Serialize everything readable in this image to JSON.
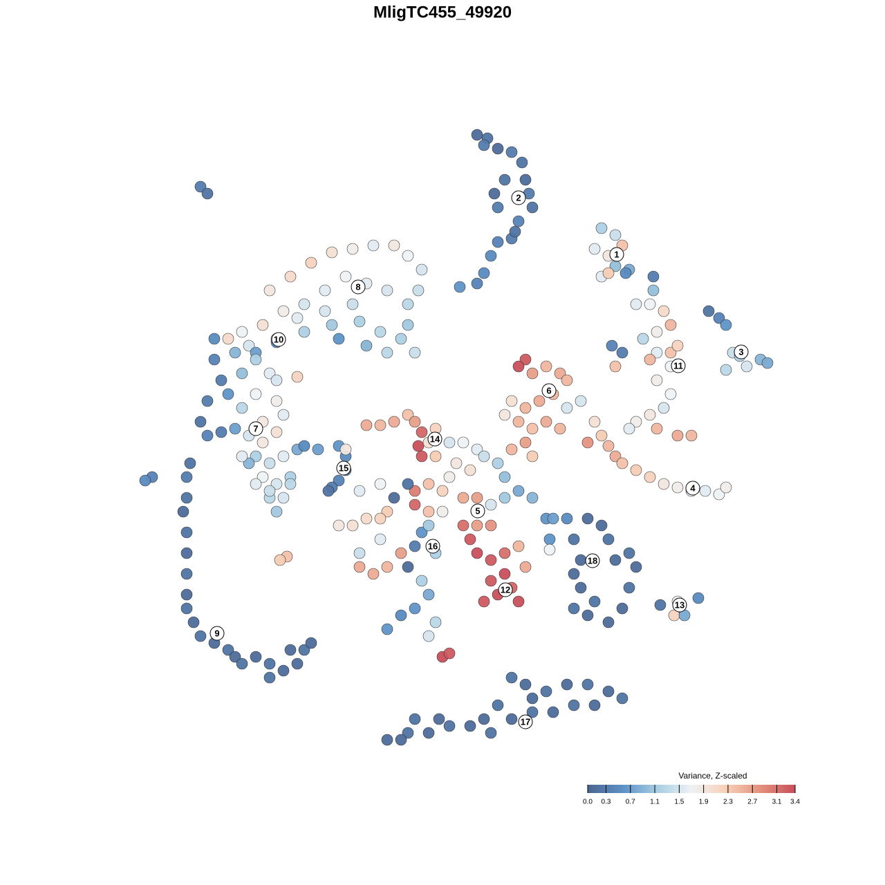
{
  "chart_data": {
    "type": "scatter",
    "title": "MligTC455_49920",
    "xlim": [
      -50,
      50
    ],
    "ylim": [
      -50,
      50
    ],
    "x": [
      5,
      6.5,
      8,
      10,
      11.5,
      12,
      12.5,
      13,
      11,
      10,
      8,
      7,
      6,
      5,
      2.5,
      8,
      9,
      7.5,
      6,
      10.5,
      -35,
      -34,
      -25,
      -22,
      -19,
      -16,
      -13,
      -10,
      -7,
      -5,
      -3,
      -3.5,
      -5,
      -8,
      -11,
      -14,
      -17,
      -20,
      -23,
      -26,
      -29,
      -31,
      -28,
      -24,
      -20,
      -16,
      -12,
      -9,
      -6,
      -4,
      -5,
      -13,
      -17,
      -21,
      -8,
      -11,
      -15,
      -24,
      -27,
      -33,
      -33,
      -32,
      -30,
      -27,
      -25,
      -29,
      -31,
      -34,
      -35,
      -34,
      -32,
      -29,
      -27,
      -26,
      -24,
      -23,
      -28,
      -30,
      -26,
      -24,
      -21,
      -24,
      -27,
      -25,
      -23,
      -26,
      -24,
      -22,
      -28,
      -27,
      -25,
      -23,
      -22,
      -24,
      -25,
      -21,
      -20,
      -29,
      -36.5,
      -37,
      -37,
      -37.5,
      -37,
      -37,
      -37,
      -37,
      -37,
      -36,
      -35,
      -33,
      -31,
      -30,
      -29,
      -27,
      -25,
      -23,
      -25,
      -21,
      -20,
      -19,
      -22,
      -42,
      -43,
      -18,
      -15,
      -14,
      -14,
      -15,
      -16,
      -16.5,
      -14,
      -11,
      -9,
      -7,
      -5,
      -4,
      -3,
      -3.5,
      -3,
      -1,
      -2,
      1,
      3,
      5,
      2,
      4,
      6,
      8,
      9,
      1,
      0,
      -2,
      -4,
      -4,
      -2,
      0,
      3,
      5,
      7,
      9,
      11,
      13,
      -5,
      -7,
      -8,
      -9,
      -11,
      -13,
      -15,
      -12,
      -9,
      -1,
      4,
      5,
      7,
      9,
      10,
      8,
      6,
      7,
      9,
      11,
      12,
      5,
      3,
      7,
      11,
      -3,
      -2,
      -4,
      -1,
      -6,
      -8,
      -10,
      -12,
      -12,
      -9,
      -5,
      -3,
      -2,
      -4,
      -6,
      -8,
      -1,
      -2,
      0,
      1,
      -22.5,
      -23.5,
      12,
      11,
      13,
      15,
      17,
      18,
      16,
      14,
      12,
      10,
      9,
      11,
      13,
      15,
      17,
      18,
      20,
      12,
      10,
      13,
      22,
      23,
      24,
      25,
      26,
      28,
      30,
      32,
      34,
      36,
      38,
      40,
      41,
      21,
      28,
      30,
      32,
      33,
      31,
      29,
      31,
      33,
      34,
      30,
      33,
      31,
      33,
      32,
      30,
      28,
      27,
      31,
      34,
      36,
      24.5,
      26,
      25,
      23,
      25,
      22,
      24,
      26,
      25,
      27,
      23,
      24,
      26.5,
      30.5,
      30.5,
      38.5,
      40,
      41,
      42,
      43,
      46,
      47,
      41,
      44,
      15,
      16,
      18,
      21,
      23,
      24,
      19,
      20,
      19,
      20,
      19,
      21,
      24,
      26,
      27,
      28,
      27,
      25,
      22,
      15.5,
      15.5,
      31.5,
      34,
      37,
      33.5,
      35,
      10,
      12,
      15,
      18,
      21,
      24,
      26,
      22,
      19,
      16,
      13,
      10,
      8,
      6,
      7,
      4,
      1,
      -2,
      -5,
      -8,
      -6,
      -4,
      -0.5,
      13
    ],
    "y": [
      44.5,
      44,
      42.5,
      42,
      40.5,
      38,
      36,
      34,
      32,
      29.5,
      29,
      27,
      24.5,
      23,
      22.5,
      34,
      38,
      36,
      43,
      30.5,
      37,
      36,
      22,
      24,
      26,
      27.5,
      28,
      28.5,
      28.5,
      27,
      25,
      22,
      20,
      22,
      23,
      24,
      22,
      20,
      19,
      17,
      16,
      15,
      14,
      15,
      16,
      17,
      17.5,
      16,
      15,
      13,
      17,
      20,
      19,
      18,
      13,
      14,
      15,
      14.5,
      13,
      15,
      12,
      9,
      13,
      12,
      10,
      10,
      7,
      6,
      3,
      1,
      1.5,
      5,
      7,
      3,
      6,
      4,
      1,
      2,
      0,
      1.5,
      9.5,
      9,
      -2,
      -3,
      -2,
      -5,
      -6,
      -5,
      -3,
      -6,
      -8,
      -8,
      -6,
      -10,
      -7,
      -1,
      -0.5,
      -2,
      -3,
      -5,
      -8,
      -10,
      -13,
      -16,
      -19,
      -22,
      -24,
      -26,
      -28,
      -29,
      -30,
      -31,
      -32,
      -31,
      -32,
      -33,
      -34,
      -32,
      -30,
      -29,
      -30,
      -5,
      -5.5,
      -1,
      -0.5,
      -2,
      -4,
      -5.5,
      -6.5,
      -7,
      -1,
      2.5,
      2.5,
      3,
      4,
      3,
      1.5,
      -0.5,
      -2,
      2,
      0,
      0,
      0,
      -1,
      -3,
      -4,
      -2,
      -3,
      -5,
      -5,
      -7,
      -6,
      -7,
      -9,
      -10,
      -10,
      -8,
      -8,
      -9,
      -8,
      -7,
      -8,
      -6,
      -8,
      -10,
      -11,
      -11,
      -12,
      -12,
      -7,
      -6,
      -2,
      -14,
      -16,
      -17,
      -19,
      -21,
      -22,
      -23,
      -20,
      -16,
      -15,
      -18,
      -12,
      -12,
      -12,
      -23,
      -13,
      -12,
      -15,
      -16,
      -16,
      -18,
      -19,
      -18,
      -16,
      -14,
      -18,
      -20,
      -22,
      -24,
      -25,
      -27,
      -26,
      -28,
      -31,
      -30.5,
      -16.5,
      -17,
      12,
      11,
      10,
      11,
      10,
      9,
      7,
      6,
      5,
      6,
      4,
      3,
      2,
      3,
      2,
      5,
      6,
      0,
      -1,
      -2,
      3,
      1,
      -0.5,
      -2,
      -3,
      -4,
      -5,
      -6,
      -6.5,
      -7,
      -7,
      -7.5,
      -6.5,
      0,
      20,
      20,
      19,
      17,
      16,
      15,
      13,
      13,
      14,
      12,
      11,
      9,
      7,
      5,
      4,
      3,
      2,
      2,
      1,
      1,
      14,
      13,
      11,
      31,
      30,
      28,
      27,
      28.5,
      25.5,
      25,
      24,
      24.5,
      24.5,
      24,
      22,
      19,
      18,
      17,
      13,
      12.5,
      12,
      11.5,
      10.5,
      11,
      -11,
      -11,
      -11,
      -11,
      -12,
      -14,
      -14,
      -17,
      -19,
      -21,
      -24,
      -25,
      -26,
      -24,
      -21,
      -18,
      -16,
      -17,
      -23,
      -14,
      -15.5,
      -23.5,
      -23,
      -22.5,
      -25,
      -25,
      -34,
      -35,
      -36,
      -35,
      -35,
      -36,
      -37,
      -38,
      -38,
      -39,
      -39,
      -40,
      -38,
      -40,
      -42,
      -41,
      -41,
      -42,
      -42,
      -43,
      -43,
      -40,
      -40,
      -37
    ],
    "values": [
      0.1,
      0.2,
      0.1,
      0.3,
      0.2,
      0.1,
      0.3,
      0.2,
      0.4,
      0.3,
      0.4,
      0.5,
      0.5,
      0.4,
      0.6,
      0.3,
      0.2,
      0.1,
      0.3,
      0.2,
      0.3,
      0.2,
      1.9,
      2.1,
      2.2,
      2.0,
      1.8,
      1.6,
      1.9,
      1.7,
      1.5,
      1.4,
      1.3,
      1.5,
      1.6,
      1.7,
      1.6,
      1.5,
      1.8,
      2.0,
      1.7,
      2.1,
      1.5,
      1.3,
      1.2,
      1.1,
      1.2,
      1.3,
      1.2,
      1.4,
      1.1,
      1.4,
      1.5,
      1.6,
      1.3,
      0.9,
      0.6,
      0.5,
      0.7,
      0.5,
      0.4,
      0.3,
      0.9,
      1.2,
      1.6,
      1.0,
      0.6,
      0.3,
      0.2,
      0.4,
      0.3,
      1.3,
      1.7,
      1.9,
      1.8,
      1.6,
      1.5,
      0.7,
      1.9,
      2.0,
      2.2,
      1.5,
      1.2,
      1.4,
      1.6,
      1.7,
      1.5,
      1.2,
      0.9,
      1.6,
      1.3,
      1.5,
      1.3,
      1.1,
      1.4,
      0.8,
      0.5,
      1.6,
      0.2,
      0.3,
      0.2,
      0.1,
      0.2,
      0.1,
      0.2,
      0.1,
      0.2,
      0.1,
      0.2,
      0.1,
      0.2,
      0.1,
      0.2,
      0.1,
      0.2,
      0.1,
      0.2,
      0.1,
      0.2,
      0.1,
      0.1,
      0.4,
      0.5,
      0.7,
      0.6,
      0.5,
      0.3,
      0.4,
      0.3,
      0.2,
      1.9,
      2.6,
      2.5,
      2.6,
      2.4,
      2.7,
      3.2,
      3.4,
      3.3,
      2.2,
      2.0,
      1.5,
      1.7,
      1.6,
      1.9,
      2.0,
      1.4,
      1.2,
      1.0,
      1.8,
      2.2,
      2.4,
      3.0,
      3.2,
      2.4,
      1.8,
      2.6,
      2.7,
      1.5,
      1.1,
      0.8,
      0.9,
      0.2,
      0.1,
      2.3,
      2.2,
      2.1,
      2.0,
      1.9,
      1.6,
      1.7,
      2.3,
      3.3,
      3.4,
      3.3,
      3.4,
      3.2,
      3.4,
      3.3,
      3.3,
      3.1,
      2.5,
      2.6,
      2.7,
      3.1,
      2.8,
      3.4,
      0.6,
      1.1,
      0.3,
      1.2,
      2.7,
      2.5,
      2.6,
      2.6,
      1.4,
      1.6,
      0.1,
      1.2,
      0.8,
      0.6,
      0.5,
      0.6,
      1.3,
      1.5,
      3.4,
      3.3,
      2.4,
      2.3,
      3.3,
      3.4,
      2.7,
      2.5,
      2.6,
      2.5,
      2.5,
      2.6,
      2.5,
      2.0,
      1.9,
      2.5,
      2.4,
      2.6,
      2.5,
      1.5,
      1.5,
      2.7,
      2.5,
      2.3,
      2.0,
      2.3,
      2.5,
      2.6,
      2.4,
      2.3,
      2.2,
      1.9,
      1.8,
      1.7,
      1.6,
      1.7,
      1.8,
      2.8,
      1.6,
      1.7,
      2.1,
      2.5,
      1.8,
      1.3,
      1.6,
      2.4,
      2.2,
      2.5,
      1.7,
      1.8,
      1.7,
      1.5,
      1.9,
      1.8,
      1.6,
      2.5,
      2.6,
      2.5,
      0.4,
      0.3,
      2.4,
      1.2,
      1.4,
      1.6,
      1.9,
      2.4,
      1.0,
      0.8,
      1.6,
      2.3,
      0.5,
      0.3,
      1.0,
      0.2,
      0.4,
      0.6,
      1.4,
      1.2,
      0.9,
      0.8,
      1.3,
      1.5,
      0.6,
      0.7,
      0.5,
      0.1,
      0.1,
      0.2,
      0.2,
      0.1,
      0.1,
      0.1,
      0.2,
      0.1,
      0.1,
      0.1,
      0.2,
      0.1,
      0.2,
      0.1,
      0.2,
      0.6,
      1.7,
      0.2,
      1.8,
      0.5,
      2.2,
      0.8,
      0.2,
      0.1,
      0.2,
      0.1,
      0.2,
      0.1,
      0.2,
      0.1,
      0.2,
      0.1,
      0.2,
      0.1,
      0.2,
      0.1,
      0.2,
      0.1,
      0.2,
      0.1,
      0.2,
      0.1,
      0.1,
      0.2,
      0.1,
      0.1
    ],
    "clusters": {
      "labels": [
        "1",
        "2",
        "3",
        "4",
        "5",
        "6",
        "7",
        "8",
        "9",
        "10",
        "11",
        "12",
        "13",
        "14",
        "15",
        "16",
        "17",
        "18"
      ],
      "x": [
        25.2,
        11,
        43.2,
        36.2,
        5.1,
        15.4,
        -27,
        -12.2,
        -32.6,
        -23.7,
        34.1,
        9.1,
        34.3,
        -1.1,
        -14.3,
        -1.4,
        12,
        21.7
      ],
      "y": [
        27.2,
        35.4,
        13.1,
        -6.6,
        -9.9,
        7.5,
        2,
        22.5,
        -27.6,
        14.9,
        11.1,
        -21.3,
        -23.5,
        0.5,
        -3.7,
        -15,
        -40.4,
        -17.1
      ]
    },
    "colorbar": {
      "title": "Variance, Z-scaled",
      "range": [
        0,
        3.4
      ],
      "ticks": [
        {
          "value": 0,
          "label": "0.0"
        },
        0.3,
        0.7,
        1.1,
        1.5,
        1.9,
        2.3,
        2.7,
        3.1,
        3.4
      ],
      "colors": [
        "#4a6590",
        "#5b90c6",
        "#a6cde2",
        "#eef2f4",
        "#f7d0b8",
        "#e4907c",
        "#c84f5b"
      ]
    }
  }
}
